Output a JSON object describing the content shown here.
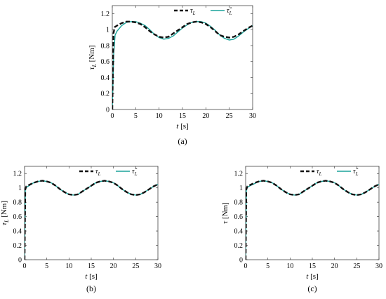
{
  "colors": {
    "reference": "#111111",
    "estimate": "#1aa39a",
    "axis": "#444444",
    "background": "#ffffff"
  },
  "chart_data": [
    {
      "panel": "a",
      "type": "line",
      "caption": "(a)",
      "xlabel": "t [s]",
      "ylabel": "τL [Nm]",
      "xlim": [
        0,
        30
      ],
      "ylim": [
        0,
        1.3
      ],
      "xticks": [
        "0",
        "5",
        "10",
        "15",
        "20",
        "25",
        "30"
      ],
      "yticks": [
        "0",
        "0.2",
        "0.4",
        "0.6",
        "0.8",
        "1",
        "1.2"
      ],
      "grid": false,
      "legend_position": "top-right",
      "series": [
        {
          "name": "τL",
          "style": "dashed",
          "color": "#111111",
          "x": [
            0,
            0.25,
            0.5,
            1,
            2,
            3,
            4,
            5,
            6,
            7,
            8,
            9,
            10,
            11,
            12,
            13,
            14,
            15,
            16,
            17,
            18,
            19,
            20,
            21,
            22,
            23,
            24,
            25,
            26,
            27,
            28,
            29,
            30
          ],
          "y": [
            0,
            0.95,
            1.03,
            1.05,
            1.08,
            1.1,
            1.1,
            1.09,
            1.07,
            1.03,
            0.98,
            0.94,
            0.91,
            0.9,
            0.91,
            0.95,
            0.99,
            1.03,
            1.07,
            1.09,
            1.1,
            1.09,
            1.07,
            1.03,
            0.98,
            0.93,
            0.91,
            0.9,
            0.91,
            0.94,
            0.98,
            1.02,
            1.05
          ]
        },
        {
          "name": "τ̂L",
          "style": "solid",
          "color": "#1aa39a",
          "x": [
            0,
            0.3,
            0.6,
            1,
            2,
            3,
            4,
            5,
            6,
            7,
            8,
            9,
            10,
            11,
            12,
            13,
            14,
            15,
            16,
            17,
            18,
            19,
            20,
            21,
            22,
            23,
            24,
            25,
            26,
            27,
            28,
            29,
            30
          ],
          "y": [
            0,
            0.7,
            0.93,
            0.98,
            1.05,
            1.09,
            1.1,
            1.1,
            1.08,
            1.05,
            1.0,
            0.94,
            0.9,
            0.88,
            0.89,
            0.92,
            0.97,
            1.02,
            1.06,
            1.09,
            1.1,
            1.1,
            1.08,
            1.04,
            0.99,
            0.93,
            0.89,
            0.87,
            0.88,
            0.92,
            0.97,
            1.01,
            1.05
          ]
        }
      ]
    },
    {
      "panel": "b",
      "type": "line",
      "caption": "(b)",
      "xlabel": "t [s]",
      "ylabel": "τL [Nm]",
      "xlim": [
        0,
        30
      ],
      "ylim": [
        0,
        1.3
      ],
      "xticks": [
        "0",
        "5",
        "10",
        "15",
        "20",
        "25",
        "30"
      ],
      "yticks": [
        "0",
        "0.2",
        "0.4",
        "0.6",
        "0.8",
        "1",
        "1.2"
      ],
      "grid": false,
      "legend_position": "top-right",
      "series": [
        {
          "name": "τL",
          "style": "dashed",
          "color": "#111111",
          "x": [
            0,
            0.15,
            0.4,
            1,
            2,
            3,
            4,
            5,
            6,
            7,
            8,
            9,
            10,
            11,
            12,
            13,
            14,
            15,
            16,
            17,
            18,
            19,
            20,
            21,
            22,
            23,
            24,
            25,
            26,
            27,
            28,
            29,
            30
          ],
          "y": [
            0,
            0.98,
            1.02,
            1.04,
            1.07,
            1.09,
            1.1,
            1.09,
            1.07,
            1.03,
            0.98,
            0.94,
            0.91,
            0.9,
            0.91,
            0.95,
            0.99,
            1.03,
            1.07,
            1.09,
            1.1,
            1.09,
            1.07,
            1.03,
            0.98,
            0.94,
            0.91,
            0.9,
            0.91,
            0.94,
            0.98,
            1.02,
            1.05
          ]
        },
        {
          "name": "τ̂L",
          "style": "solid",
          "color": "#1aa39a",
          "x": [
            0,
            0.15,
            0.4,
            1,
            2,
            3,
            4,
            5,
            6,
            7,
            8,
            9,
            10,
            11,
            12,
            13,
            14,
            15,
            16,
            17,
            18,
            19,
            20,
            21,
            22,
            23,
            24,
            25,
            26,
            27,
            28,
            29,
            30
          ],
          "y": [
            0,
            0.97,
            1.01,
            1.03,
            1.07,
            1.09,
            1.1,
            1.09,
            1.07,
            1.03,
            0.98,
            0.94,
            0.91,
            0.9,
            0.91,
            0.95,
            0.99,
            1.03,
            1.07,
            1.09,
            1.1,
            1.09,
            1.07,
            1.03,
            0.98,
            0.94,
            0.91,
            0.9,
            0.91,
            0.94,
            0.98,
            1.02,
            1.05
          ]
        }
      ]
    },
    {
      "panel": "c",
      "type": "line",
      "caption": "(c)",
      "xlabel": "t [s]",
      "ylabel": "τ [Nm]",
      "xlim": [
        0,
        30
      ],
      "ylim": [
        0,
        1.3
      ],
      "xticks": [
        "0",
        "5",
        "10",
        "15",
        "20",
        "25",
        "30"
      ],
      "yticks": [
        "0",
        "0.2",
        "0.4",
        "0.6",
        "0.8",
        "1",
        "1.2"
      ],
      "grid": false,
      "legend_position": "top-right",
      "series": [
        {
          "name": "τL",
          "style": "dashed",
          "color": "#111111",
          "x": [
            0,
            0.15,
            0.4,
            1,
            2,
            3,
            4,
            5,
            6,
            7,
            8,
            9,
            10,
            11,
            12,
            13,
            14,
            15,
            16,
            17,
            18,
            19,
            20,
            21,
            22,
            23,
            24,
            25,
            26,
            27,
            28,
            29,
            30
          ],
          "y": [
            0,
            0.98,
            1.02,
            1.04,
            1.07,
            1.09,
            1.1,
            1.09,
            1.07,
            1.03,
            0.98,
            0.94,
            0.91,
            0.9,
            0.91,
            0.95,
            0.99,
            1.03,
            1.07,
            1.09,
            1.1,
            1.09,
            1.07,
            1.03,
            0.98,
            0.94,
            0.91,
            0.9,
            0.91,
            0.94,
            0.98,
            1.02,
            1.05
          ]
        },
        {
          "name": "τ̂L",
          "style": "solid",
          "color": "#1aa39a",
          "x": [
            0,
            0.15,
            0.4,
            1,
            2,
            3,
            4,
            5,
            6,
            7,
            8,
            9,
            10,
            11,
            12,
            13,
            14,
            15,
            16,
            17,
            18,
            19,
            20,
            21,
            22,
            23,
            24,
            25,
            26,
            27,
            28,
            29,
            30
          ],
          "y": [
            0,
            0.96,
            1.01,
            1.03,
            1.06,
            1.09,
            1.1,
            1.09,
            1.07,
            1.03,
            0.98,
            0.94,
            0.91,
            0.9,
            0.91,
            0.95,
            0.99,
            1.03,
            1.07,
            1.09,
            1.1,
            1.09,
            1.07,
            1.03,
            0.98,
            0.94,
            0.91,
            0.9,
            0.91,
            0.94,
            0.98,
            1.02,
            1.05
          ]
        }
      ]
    }
  ]
}
